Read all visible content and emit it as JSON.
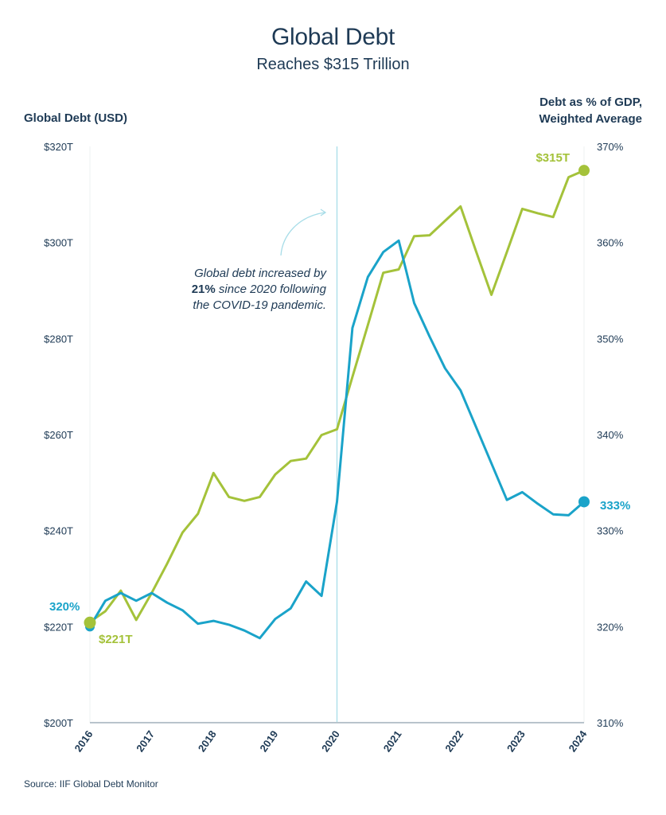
{
  "header": {
    "title": "Global Debt",
    "subtitle": "Reaches $315 Trillion"
  },
  "annotation": {
    "line1": "Global debt increased by",
    "bold": "21%",
    "line2_rest": " since 2020 following",
    "line3": "the COVID-19 pandemic."
  },
  "source": "Source: IIF Global Debt Monitor",
  "colors": {
    "green": "#a4c23a",
    "blue": "#1aa3c9",
    "text": "#1e3a55",
    "marker_line": "#a8dde8",
    "axis": "#b8c4cc",
    "gridline": "#eef0f2"
  },
  "chart_data": {
    "type": "line",
    "title": "Global Debt",
    "subtitle": "Reaches $315 Trillion",
    "xlabel": "",
    "ylabel_left": "Global Debt (USD)",
    "ylabel_right": "Debt as % of GDP, Weighted Average",
    "x_ticks": [
      "2016",
      "2017",
      "2018",
      "2019",
      "2020",
      "2021",
      "2022",
      "2023",
      "2024"
    ],
    "x_range": [
      2016,
      2024
    ],
    "y_left": {
      "range": [
        200,
        320
      ],
      "ticks": [
        "$200T",
        "$220T",
        "$240T",
        "$260T",
        "$280T",
        "$300T",
        "$320T"
      ],
      "tick_values": [
        200,
        220,
        240,
        260,
        280,
        300,
        320
      ]
    },
    "y_right": {
      "range": [
        310,
        370
      ],
      "ticks": [
        "310%",
        "320%",
        "330%",
        "340%",
        "350%",
        "360%",
        "370%"
      ],
      "tick_values": [
        310,
        320,
        330,
        340,
        350,
        360,
        370
      ]
    },
    "grid": false,
    "vertical_marker": {
      "x": 2020
    },
    "x": [
      2016.0,
      2016.25,
      2016.5,
      2016.75,
      2017.0,
      2017.25,
      2017.5,
      2017.75,
      2018.0,
      2018.25,
      2018.5,
      2018.75,
      2019.0,
      2019.25,
      2019.5,
      2019.75,
      2020.0,
      2020.25,
      2020.5,
      2020.75,
      2021.0,
      2021.25,
      2021.5,
      2021.75,
      2022.0,
      2022.25,
      2022.5,
      2022.75,
      2023.0,
      2023.25,
      2023.5,
      2023.75,
      2024.0
    ],
    "series": [
      {
        "name": "Global Debt (USD trillions)",
        "axis": "left",
        "color": "#a4c23a",
        "values": [
          221,
          223.2,
          227.5,
          221.4,
          227.0,
          233.1,
          239.6,
          243.5,
          252.0,
          247.0,
          246.2,
          247.0,
          251.7,
          254.5,
          255.0,
          259.9,
          261.1,
          272.0,
          282.8,
          293.7,
          294.4,
          301.3,
          301.5,
          304.5,
          307.5,
          298.2,
          289.1,
          298.0,
          307.0,
          306.1,
          305.3,
          313.6,
          315
        ],
        "start_label": "$221T",
        "end_label": "$315T"
      },
      {
        "name": "Debt as % of GDP, Weighted Average",
        "axis": "right",
        "color": "#1aa3c9",
        "values": [
          320,
          322.7,
          323.5,
          322.7,
          323.5,
          322.5,
          321.7,
          320.3,
          320.6,
          320.2,
          319.6,
          318.8,
          320.8,
          321.9,
          324.7,
          323.2,
          333.0,
          351.1,
          356.4,
          359.0,
          360.2,
          353.7,
          350.2,
          346.9,
          344.6,
          340.8,
          337.0,
          333.2,
          334.0,
          332.8,
          331.7,
          331.6,
          333
        ],
        "start_label": "320%",
        "end_label": "333%"
      }
    ],
    "legend": "none"
  }
}
